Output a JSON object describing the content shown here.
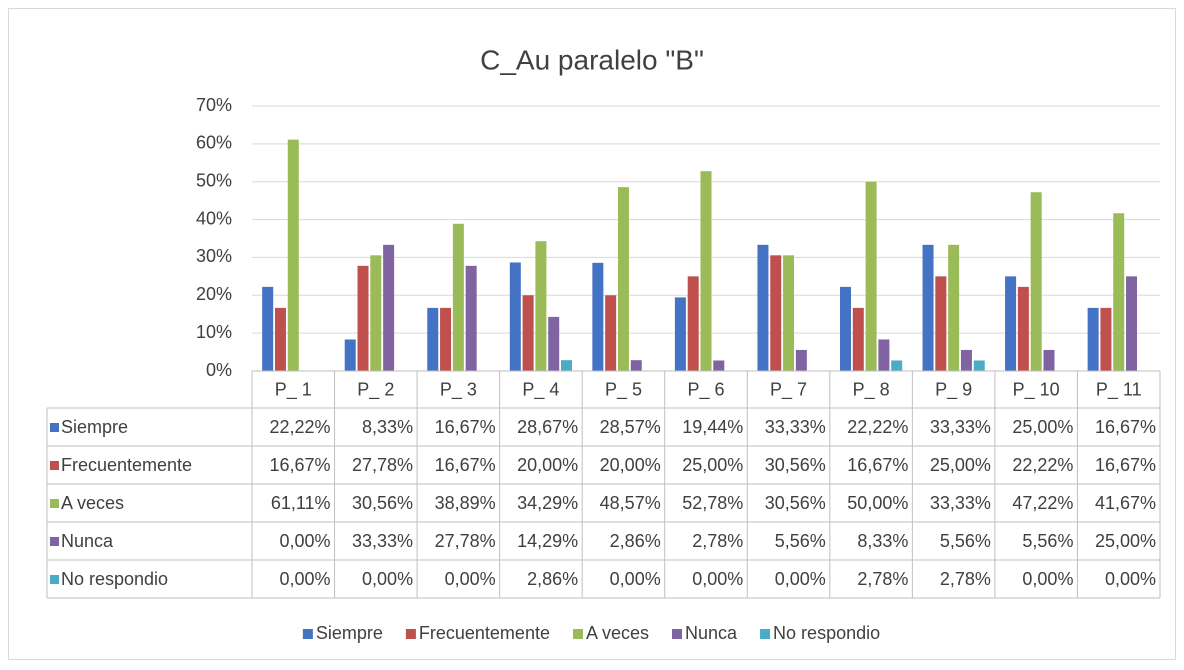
{
  "chart_data": {
    "type": "bar",
    "title": "C_Au paralelo \"B\"",
    "categories": [
      "P_ 1",
      "P_ 2",
      "P_ 3",
      "P_ 4",
      "P_ 5",
      "P_ 6",
      "P_ 7",
      "P_ 8",
      "P_ 9",
      "P_ 10",
      "P_ 11"
    ],
    "ylim": [
      0,
      70
    ],
    "yticks": [
      {
        "value": 0,
        "label": "0%"
      },
      {
        "value": 10,
        "label": "10%"
      },
      {
        "value": 20,
        "label": "20%"
      },
      {
        "value": 30,
        "label": "30%"
      },
      {
        "value": 40,
        "label": "40%"
      },
      {
        "value": 50,
        "label": "50%"
      },
      {
        "value": 60,
        "label": "60%"
      },
      {
        "value": 70,
        "label": "70%"
      }
    ],
    "grid": true,
    "legend": "bottom",
    "series": [
      {
        "name": "Siempre",
        "color": "#4472c4",
        "values": [
          22.22,
          8.33,
          16.67,
          28.67,
          28.57,
          19.44,
          33.33,
          22.22,
          33.33,
          25.0,
          16.67
        ],
        "value_labels": [
          "22,22%",
          "8,33%",
          "16,67%",
          "28,67%",
          "28,57%",
          "19,44%",
          "33,33%",
          "22,22%",
          "33,33%",
          "25,00%",
          "16,67%"
        ]
      },
      {
        "name": "Frecuentemente",
        "color": "#c0504d",
        "values": [
          16.67,
          27.78,
          16.67,
          20.0,
          20.0,
          25.0,
          30.56,
          16.67,
          25.0,
          22.22,
          16.67
        ],
        "value_labels": [
          "16,67%",
          "27,78%",
          "16,67%",
          "20,00%",
          "20,00%",
          "25,00%",
          "30,56%",
          "16,67%",
          "25,00%",
          "22,22%",
          "16,67%"
        ]
      },
      {
        "name": "A veces",
        "color": "#9bbb59",
        "values": [
          61.11,
          30.56,
          38.89,
          34.29,
          48.57,
          52.78,
          30.56,
          50.0,
          33.33,
          47.22,
          41.67
        ],
        "value_labels": [
          "61,11%",
          "30,56%",
          "38,89%",
          "34,29%",
          "48,57%",
          "52,78%",
          "30,56%",
          "50,00%",
          "33,33%",
          "47,22%",
          "41,67%"
        ]
      },
      {
        "name": "Nunca",
        "color": "#8064a2",
        "values": [
          0.0,
          33.33,
          27.78,
          14.29,
          2.86,
          2.78,
          5.56,
          8.33,
          5.56,
          5.56,
          25.0
        ],
        "value_labels": [
          "0,00%",
          "33,33%",
          "27,78%",
          "14,29%",
          "2,86%",
          "2,78%",
          "5,56%",
          "8,33%",
          "5,56%",
          "5,56%",
          "25,00%"
        ]
      },
      {
        "name": "No respondio",
        "color": "#4bacc6",
        "values": [
          0.0,
          0.0,
          0.0,
          2.86,
          0.0,
          0.0,
          0.0,
          2.78,
          2.78,
          0.0,
          0.0
        ],
        "value_labels": [
          "0,00%",
          "0,00%",
          "0,00%",
          "2,86%",
          "0,00%",
          "0,00%",
          "0,00%",
          "2,78%",
          "2,78%",
          "0,00%",
          "0,00%"
        ]
      }
    ]
  }
}
